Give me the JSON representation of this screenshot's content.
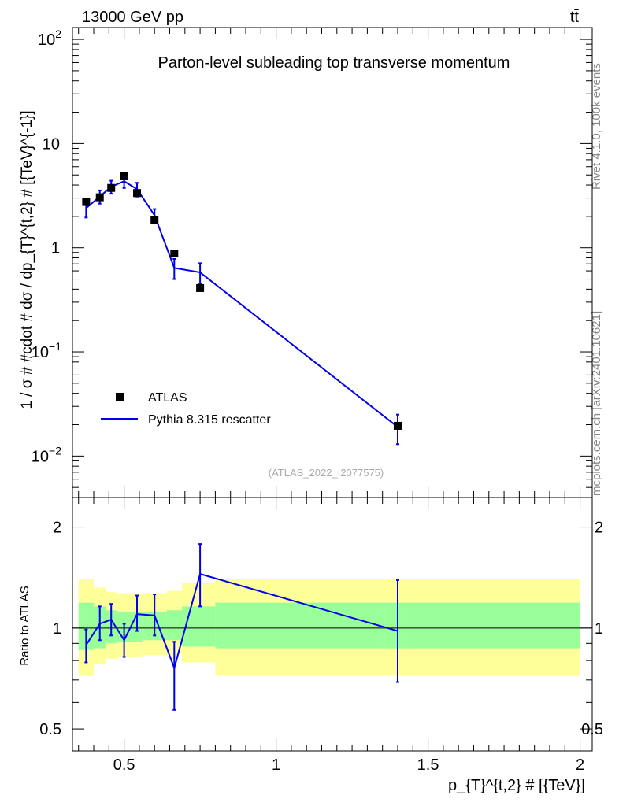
{
  "header": {
    "energy_label": "13000 GeV pp",
    "process_label": "tt̄"
  },
  "side_labels": {
    "rivet": "Rivet 4.1.0,  100k events",
    "url": "mcplots.cern.ch [arXiv:2401.10621]"
  },
  "colors": {
    "mc_line": "#0000ee",
    "data_marker": "#000000",
    "band_outer": "#ffff99",
    "band_inner": "#99ff99"
  },
  "chart_data": [
    {
      "type": "line",
      "panel": "main",
      "title": "Parton-level subleading top transverse momentum",
      "analysis_label": "(ATLAS_2022_I2077575)",
      "ylabel": "1 / σ # #cdot # dσ / dp_{T}^{t,2} # [{TeV}^{-1}]",
      "yscale": "log",
      "xlim": [
        0.33,
        2.04
      ],
      "ylim": [
        0.004,
        130
      ],
      "y_ticks": [
        {
          "value": 0.01,
          "label": "10",
          "exp": "−2"
        },
        {
          "value": 0.1,
          "label": "10",
          "exp": "−1"
        },
        {
          "value": 1,
          "label": "1",
          "exp": ""
        },
        {
          "value": 10,
          "label": "10",
          "exp": ""
        },
        {
          "value": 100,
          "label": "10",
          "exp": "2"
        }
      ],
      "legend": {
        "position": "lower-left",
        "entries": [
          "ATLAS",
          "Pythia 8.315 rescatter"
        ]
      },
      "series": [
        {
          "name": "ATLAS",
          "style": "marker",
          "x": [
            0.375,
            0.42,
            0.4575,
            0.5,
            0.5425,
            0.6,
            0.665,
            0.75,
            1.4
          ],
          "y": [
            2.75,
            3.05,
            3.75,
            4.85,
            3.35,
            1.85,
            0.88,
            0.41,
            0.0195
          ]
        },
        {
          "name": "Pythia 8.315 rescatter",
          "style": "line",
          "x": [
            0.375,
            0.42,
            0.4575,
            0.5,
            0.5425,
            0.6,
            0.665,
            0.75,
            1.4
          ],
          "y": [
            2.4,
            3.1,
            3.85,
            4.35,
            3.65,
            2.05,
            0.64,
            0.58,
            0.019
          ],
          "y_err": [
            0.45,
            0.45,
            0.55,
            0.6,
            0.55,
            0.3,
            0.14,
            0.13,
            0.006
          ]
        }
      ]
    },
    {
      "type": "line",
      "panel": "ratio",
      "ylabel": "Ratio to ATLAS",
      "yscale": "log",
      "xlabel": "p_{T}^{t,2} # [{TeV}]",
      "xlim": [
        0.33,
        2.04
      ],
      "ylim": [
        0.43,
        2.45
      ],
      "x_ticks": [
        0.5,
        1,
        1.5,
        2
      ],
      "x_tick_labels": [
        "0.5",
        "1",
        "1.5",
        "2"
      ],
      "y_ticks": [
        0.5,
        1,
        2
      ],
      "y_tick_labels": [
        "0.5",
        "1",
        "2"
      ],
      "bands": [
        {
          "x_lo": 0.35,
          "x_hi": 0.4,
          "outer": [
            0.72,
            1.4
          ],
          "inner": [
            0.86,
            1.19
          ]
        },
        {
          "x_lo": 0.4,
          "x_hi": 0.44,
          "outer": [
            0.78,
            1.32
          ],
          "inner": [
            0.87,
            1.16
          ]
        },
        {
          "x_lo": 0.44,
          "x_hi": 0.475,
          "outer": [
            0.81,
            1.28
          ],
          "inner": [
            0.9,
            1.13
          ]
        },
        {
          "x_lo": 0.475,
          "x_hi": 0.525,
          "outer": [
            0.82,
            1.27
          ],
          "inner": [
            0.91,
            1.12
          ]
        },
        {
          "x_lo": 0.525,
          "x_hi": 0.56,
          "outer": [
            0.82,
            1.27
          ],
          "inner": [
            0.91,
            1.12
          ]
        },
        {
          "x_lo": 0.56,
          "x_hi": 0.64,
          "outer": [
            0.83,
            1.27
          ],
          "inner": [
            0.92,
            1.12
          ]
        },
        {
          "x_lo": 0.64,
          "x_hi": 0.69,
          "outer": [
            0.83,
            1.29
          ],
          "inner": [
            0.92,
            1.13
          ]
        },
        {
          "x_lo": 0.69,
          "x_hi": 0.8,
          "outer": [
            0.79,
            1.36
          ],
          "inner": [
            0.88,
            1.16
          ]
        },
        {
          "x_lo": 0.8,
          "x_hi": 2.0,
          "outer": [
            0.72,
            1.4
          ],
          "inner": [
            0.87,
            1.19
          ]
        }
      ],
      "series": [
        {
          "name": "Pythia 8.315 rescatter",
          "style": "line",
          "x": [
            0.375,
            0.42,
            0.4575,
            0.5,
            0.5425,
            0.6,
            0.665,
            0.75,
            1.4
          ],
          "y": [
            0.89,
            1.03,
            1.06,
            0.92,
            1.1,
            1.09,
            0.76,
            1.45,
            0.98
          ],
          "y_lo": [
            0.79,
            0.92,
            0.95,
            0.82,
            0.98,
            0.95,
            0.57,
            1.16,
            0.69
          ],
          "y_hi": [
            0.99,
            1.16,
            1.18,
            1.03,
            1.25,
            1.26,
            0.91,
            1.78,
            1.39
          ]
        }
      ]
    }
  ]
}
